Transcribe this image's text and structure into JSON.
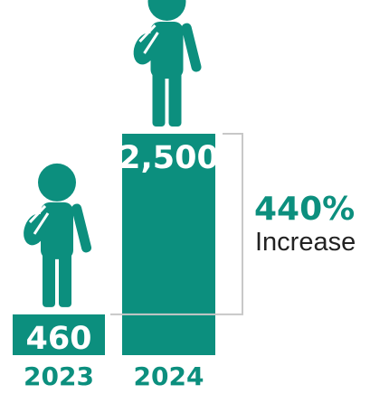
{
  "colors": {
    "accent": "#0c8f7e",
    "bracket": "#c8c8c8"
  },
  "icons": {
    "student": "student-with-backpack-icon"
  },
  "chart_data": {
    "type": "bar",
    "categories": [
      "2023",
      "2024"
    ],
    "values": [
      460,
      2500
    ],
    "value_labels": [
      "460",
      "2,500"
    ],
    "annotation": {
      "percent": "440%",
      "text": "Increase"
    }
  }
}
